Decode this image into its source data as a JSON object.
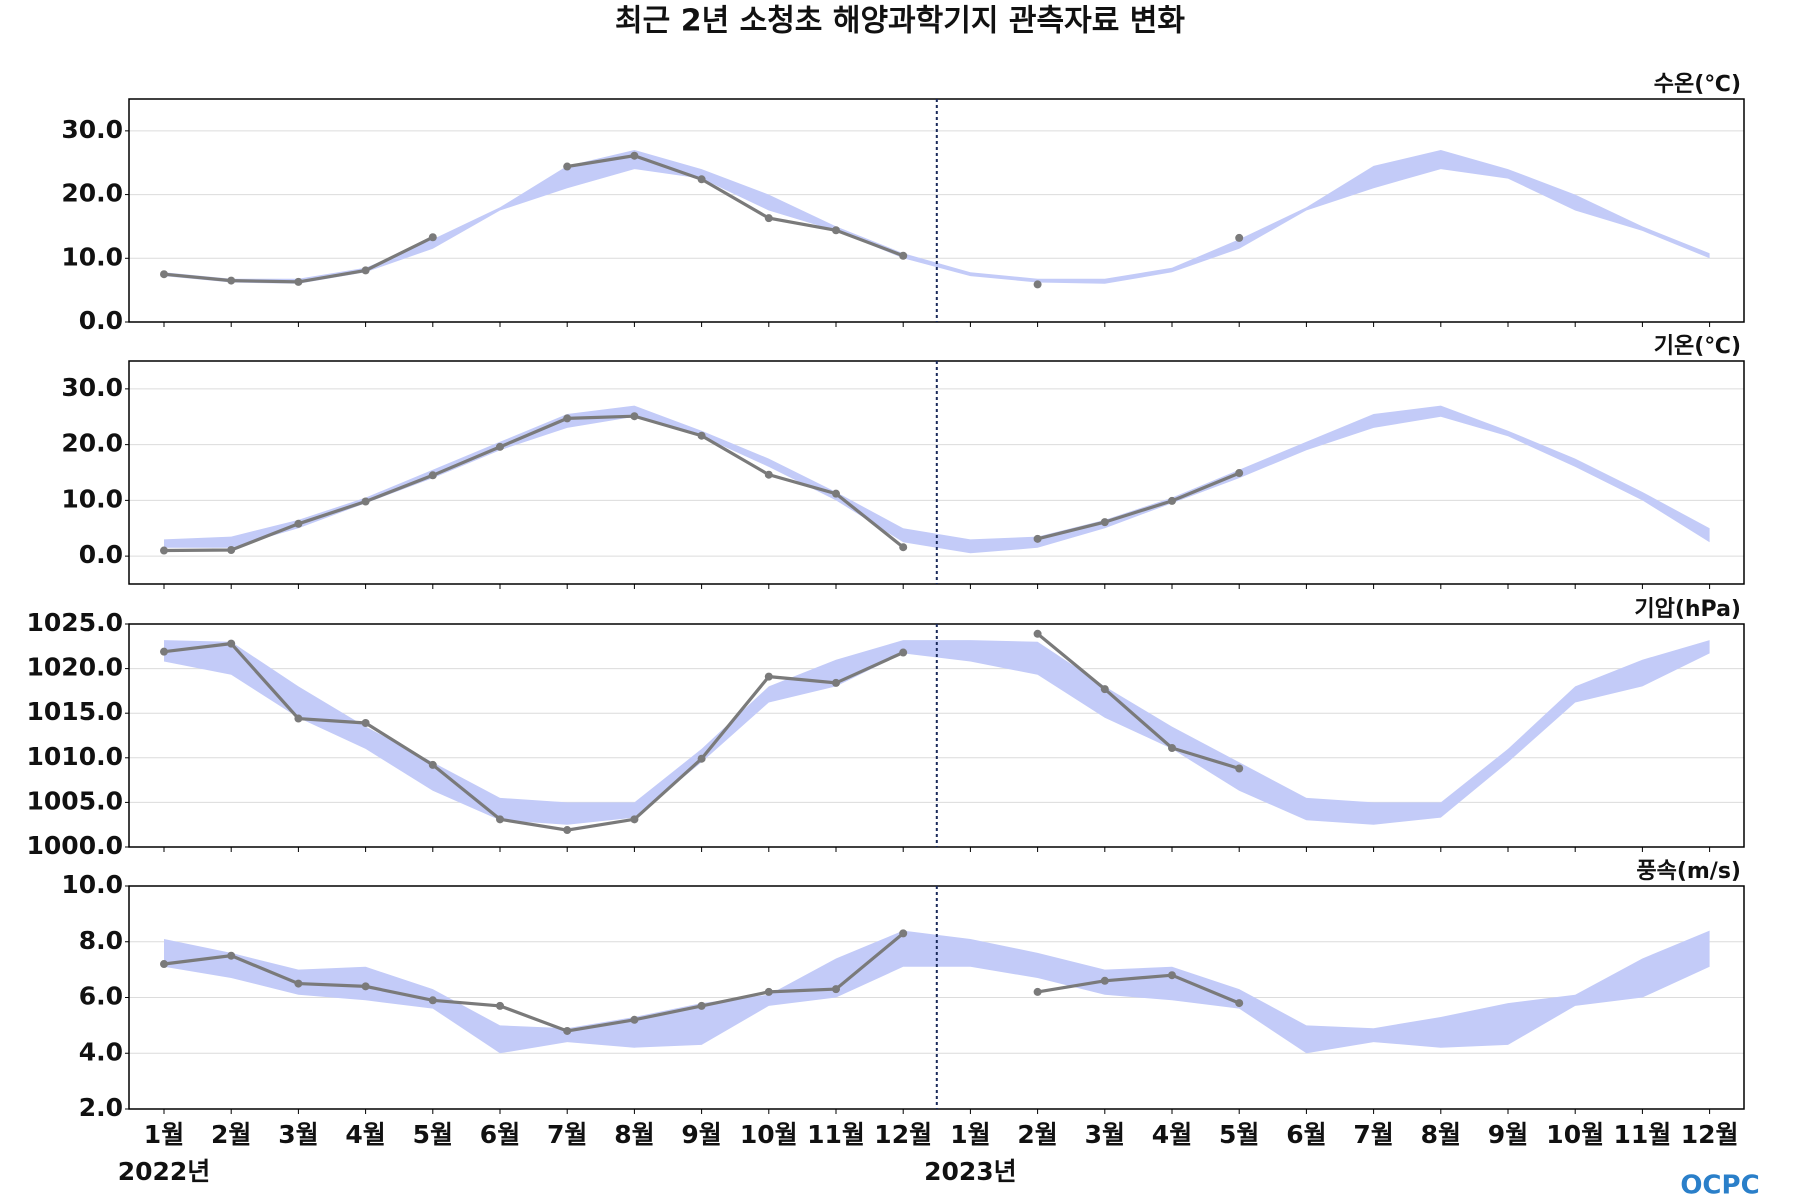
{
  "title": "최근 2년 소청초 해양과학기지 관측자료 변화",
  "x_labels": {
    "months": [
      "1월",
      "2월",
      "3월",
      "4월",
      "5월",
      "6월",
      "7월",
      "8월",
      "9월",
      "10월",
      "11월",
      "12월",
      "1월",
      "2월",
      "3월",
      "4월",
      "5월",
      "6월",
      "7월",
      "8월",
      "9월",
      "10월",
      "11월",
      "12월"
    ],
    "years": [
      "2022년",
      "2023년"
    ]
  },
  "logo": "OCPC",
  "chart_data": [
    {
      "type": "line",
      "label": "수온(℃)",
      "ylim": [
        0,
        35
      ],
      "yticks": [
        {
          "value": 0,
          "label": "0.0"
        },
        {
          "value": 10,
          "label": "10.0"
        },
        {
          "value": 20,
          "label": "20.0"
        },
        {
          "value": 30,
          "label": "30.0"
        }
      ],
      "grid": true,
      "band": {
        "color": "#c3cbf8",
        "lower": [
          7.2,
          6.2,
          6.0,
          7.8,
          11.5,
          17.5,
          21,
          24,
          22.5,
          17.5,
          14.3,
          10,
          7.2,
          6.2,
          6.0,
          7.8,
          11.5,
          17.5,
          21,
          24,
          22.5,
          17.5,
          14.3,
          10
        ],
        "upper": [
          7.8,
          6.8,
          6.8,
          8.5,
          13,
          18,
          24.5,
          27,
          24,
          20,
          15,
          10.8,
          7.8,
          6.8,
          6.8,
          8.5,
          13,
          18,
          24.5,
          27,
          24,
          20,
          15,
          10.8
        ]
      },
      "series": [
        {
          "color": "#7a7a7a",
          "values": [
            7.5,
            6.5,
            6.3,
            8.1,
            13.3,
            null,
            24.4,
            26.1,
            22.4,
            16.3,
            14.4,
            10.4,
            null,
            5.9,
            null,
            null,
            13.2,
            null,
            null,
            null,
            null,
            null,
            null,
            null
          ]
        }
      ]
    },
    {
      "type": "line",
      "label": "기온(℃)",
      "ylim": [
        -5,
        35
      ],
      "yticks": [
        {
          "value": 0,
          "label": "0.0"
        },
        {
          "value": 10,
          "label": "10.0"
        },
        {
          "value": 20,
          "label": "20.0"
        },
        {
          "value": 30,
          "label": "30.0"
        }
      ],
      "grid": true,
      "band": {
        "color": "#c3cbf8",
        "lower": [
          1.5,
          1.5,
          5,
          9.5,
          14,
          19,
          23,
          25,
          21.5,
          16,
          10,
          2.5,
          0.5,
          1.5,
          5,
          9.5,
          14,
          19,
          23,
          25,
          21.5,
          16,
          10,
          2.5
        ],
        "upper": [
          3,
          3.5,
          6.5,
          10.5,
          15.5,
          20.5,
          25.5,
          27,
          22.5,
          17.5,
          11.5,
          5,
          3,
          3.5,
          6.5,
          10.5,
          15.5,
          20.5,
          25.5,
          27,
          22.5,
          17.5,
          11.5,
          5
        ]
      },
      "series": [
        {
          "color": "#7a7a7a",
          "values": [
            1.0,
            1.1,
            5.8,
            9.8,
            14.5,
            19.6,
            24.7,
            25.1,
            21.6,
            14.6,
            11.2,
            1.6,
            null,
            3.1,
            6.1,
            9.9,
            14.9,
            null,
            null,
            null,
            null,
            null,
            null,
            null
          ]
        }
      ]
    },
    {
      "type": "line",
      "label": "기압(hPa)",
      "ylim": [
        1000,
        1025
      ],
      "yticks": [
        {
          "value": 1000,
          "label": "1000.0"
        },
        {
          "value": 1005,
          "label": "1005.0"
        },
        {
          "value": 1010,
          "label": "1010.0"
        },
        {
          "value": 1015,
          "label": "1015.0"
        },
        {
          "value": 1020,
          "label": "1020.0"
        },
        {
          "value": 1025,
          "label": "1025.0"
        }
      ],
      "grid": true,
      "band": {
        "color": "#c3cbf8",
        "lower": [
          1020.8,
          1019.3,
          1014.5,
          1011,
          1006.3,
          1003,
          1002.5,
          1003.3,
          1009.5,
          1016.2,
          1018,
          1021.7,
          1020.8,
          1019.3,
          1014.5,
          1011,
          1006.3,
          1003,
          1002.5,
          1003.3,
          1009.5,
          1016.2,
          1018,
          1021.7
        ],
        "upper": [
          1023.2,
          1023,
          1018,
          1013.5,
          1009.5,
          1005.5,
          1005,
          1005,
          1011,
          1018,
          1021,
          1023.2,
          1023.2,
          1023,
          1018,
          1013.5,
          1009.5,
          1005.5,
          1005,
          1005,
          1011,
          1018,
          1021,
          1023.2
        ]
      },
      "series": [
        {
          "color": "#7a7a7a",
          "values": [
            1021.9,
            1022.8,
            1014.4,
            1013.9,
            1009.2,
            1003.1,
            1001.9,
            1003.1,
            1009.9,
            1019.1,
            1018.4,
            1021.8,
            null,
            1023.9,
            1017.7,
            1011.1,
            1008.8,
            null,
            null,
            null,
            null,
            null,
            null,
            null
          ]
        }
      ]
    },
    {
      "type": "line",
      "label": "풍속(m/s)",
      "ylim": [
        2,
        10
      ],
      "yticks": [
        {
          "value": 2,
          "label": "2.0"
        },
        {
          "value": 4,
          "label": "4.0"
        },
        {
          "value": 6,
          "label": "6.0"
        },
        {
          "value": 8,
          "label": "8.0"
        },
        {
          "value": 10,
          "label": "10.0"
        }
      ],
      "grid": true,
      "band": {
        "color": "#c3cbf8",
        "lower": [
          7.1,
          6.7,
          6.1,
          5.9,
          5.6,
          4.0,
          4.4,
          4.2,
          4.3,
          5.7,
          6.0,
          7.1,
          7.1,
          6.7,
          6.1,
          5.9,
          5.6,
          4.0,
          4.4,
          4.2,
          4.3,
          5.7,
          6.0,
          7.1
        ],
        "upper": [
          8.1,
          7.6,
          7.0,
          7.1,
          6.3,
          5.0,
          4.9,
          5.3,
          5.8,
          6.1,
          7.4,
          8.4,
          8.1,
          7.6,
          7.0,
          7.1,
          6.3,
          5.0,
          4.9,
          5.3,
          5.8,
          6.1,
          7.4,
          8.4
        ]
      },
      "series": [
        {
          "color": "#7a7a7a",
          "values": [
            7.2,
            7.5,
            6.5,
            6.4,
            5.9,
            5.7,
            4.8,
            5.2,
            5.7,
            6.2,
            6.3,
            8.3,
            null,
            6.2,
            6.6,
            6.8,
            5.8,
            null,
            null,
            null,
            null,
            null,
            null,
            null
          ]
        }
      ]
    }
  ]
}
